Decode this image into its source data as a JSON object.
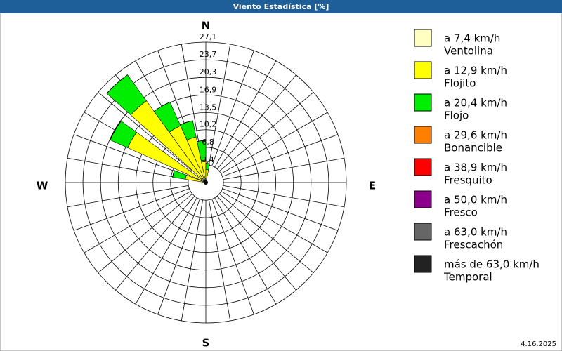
{
  "chart_data": {
    "type": "windrose",
    "title": "Viento Estadística [%]",
    "compass": [
      "N",
      "E",
      "S",
      "W"
    ],
    "directions": [
      285,
      300,
      318,
      330,
      342,
      354,
      6
    ],
    "rlim": [
      0,
      27.1
    ],
    "rticks": [
      {
        "value": 3.4,
        "label": "3,4"
      },
      {
        "value": 6.8,
        "label": "6,8"
      },
      {
        "value": 10.2,
        "label": "10,2"
      },
      {
        "value": 13.5,
        "label": "13,5"
      },
      {
        "value": 16.9,
        "label": "16,9"
      },
      {
        "value": 20.3,
        "label": "20,3"
      },
      {
        "value": 23.7,
        "label": "23,7"
      },
      {
        "value": 27.1,
        "label": "27,1"
      }
    ],
    "series": [
      {
        "speed": "a 7,4 km/h",
        "name": "Ventolina",
        "color": "#ffffc0",
        "values": [
          0.5,
          1,
          1,
          1,
          1,
          0.8,
          0.5
        ]
      },
      {
        "speed": "a 12,9 km/h",
        "name": "Flojito",
        "color": "#ffff00",
        "values": [
          3.5,
          15.5,
          18.5,
          11,
          8,
          3.5,
          2
        ]
      },
      {
        "speed": "a 20,4 km/h",
        "name": "Flojo",
        "color": "#00ee00",
        "values": [
          2.5,
          3.7,
          6.2,
          5,
          3.2,
          3.8,
          1.2
        ]
      },
      {
        "speed": "a 29,6 km/h",
        "name": "Bonancible",
        "color": "#ff8000",
        "values": [
          0,
          0,
          0,
          0,
          0,
          0,
          0
        ]
      },
      {
        "speed": "a 38,9 km/h",
        "name": "Fresquito",
        "color": "#ff0000",
        "values": [
          0,
          0,
          0,
          0,
          0,
          0,
          0
        ]
      },
      {
        "speed": "a 50,0 km/h",
        "name": "Fresco",
        "color": "#8b008b",
        "values": [
          0,
          0,
          0,
          0,
          0,
          0,
          0
        ]
      },
      {
        "speed": "a 63,0 km/h",
        "name": "Frescachón",
        "color": "#666666",
        "values": [
          0,
          0,
          0,
          0,
          0,
          0,
          0
        ]
      },
      {
        "speed": "más de 63,0 km/h",
        "name": "Temporal",
        "color": "#222222",
        "values": [
          0,
          0,
          0,
          0,
          0,
          0,
          0
        ]
      }
    ],
    "date": "4.16.2025"
  }
}
